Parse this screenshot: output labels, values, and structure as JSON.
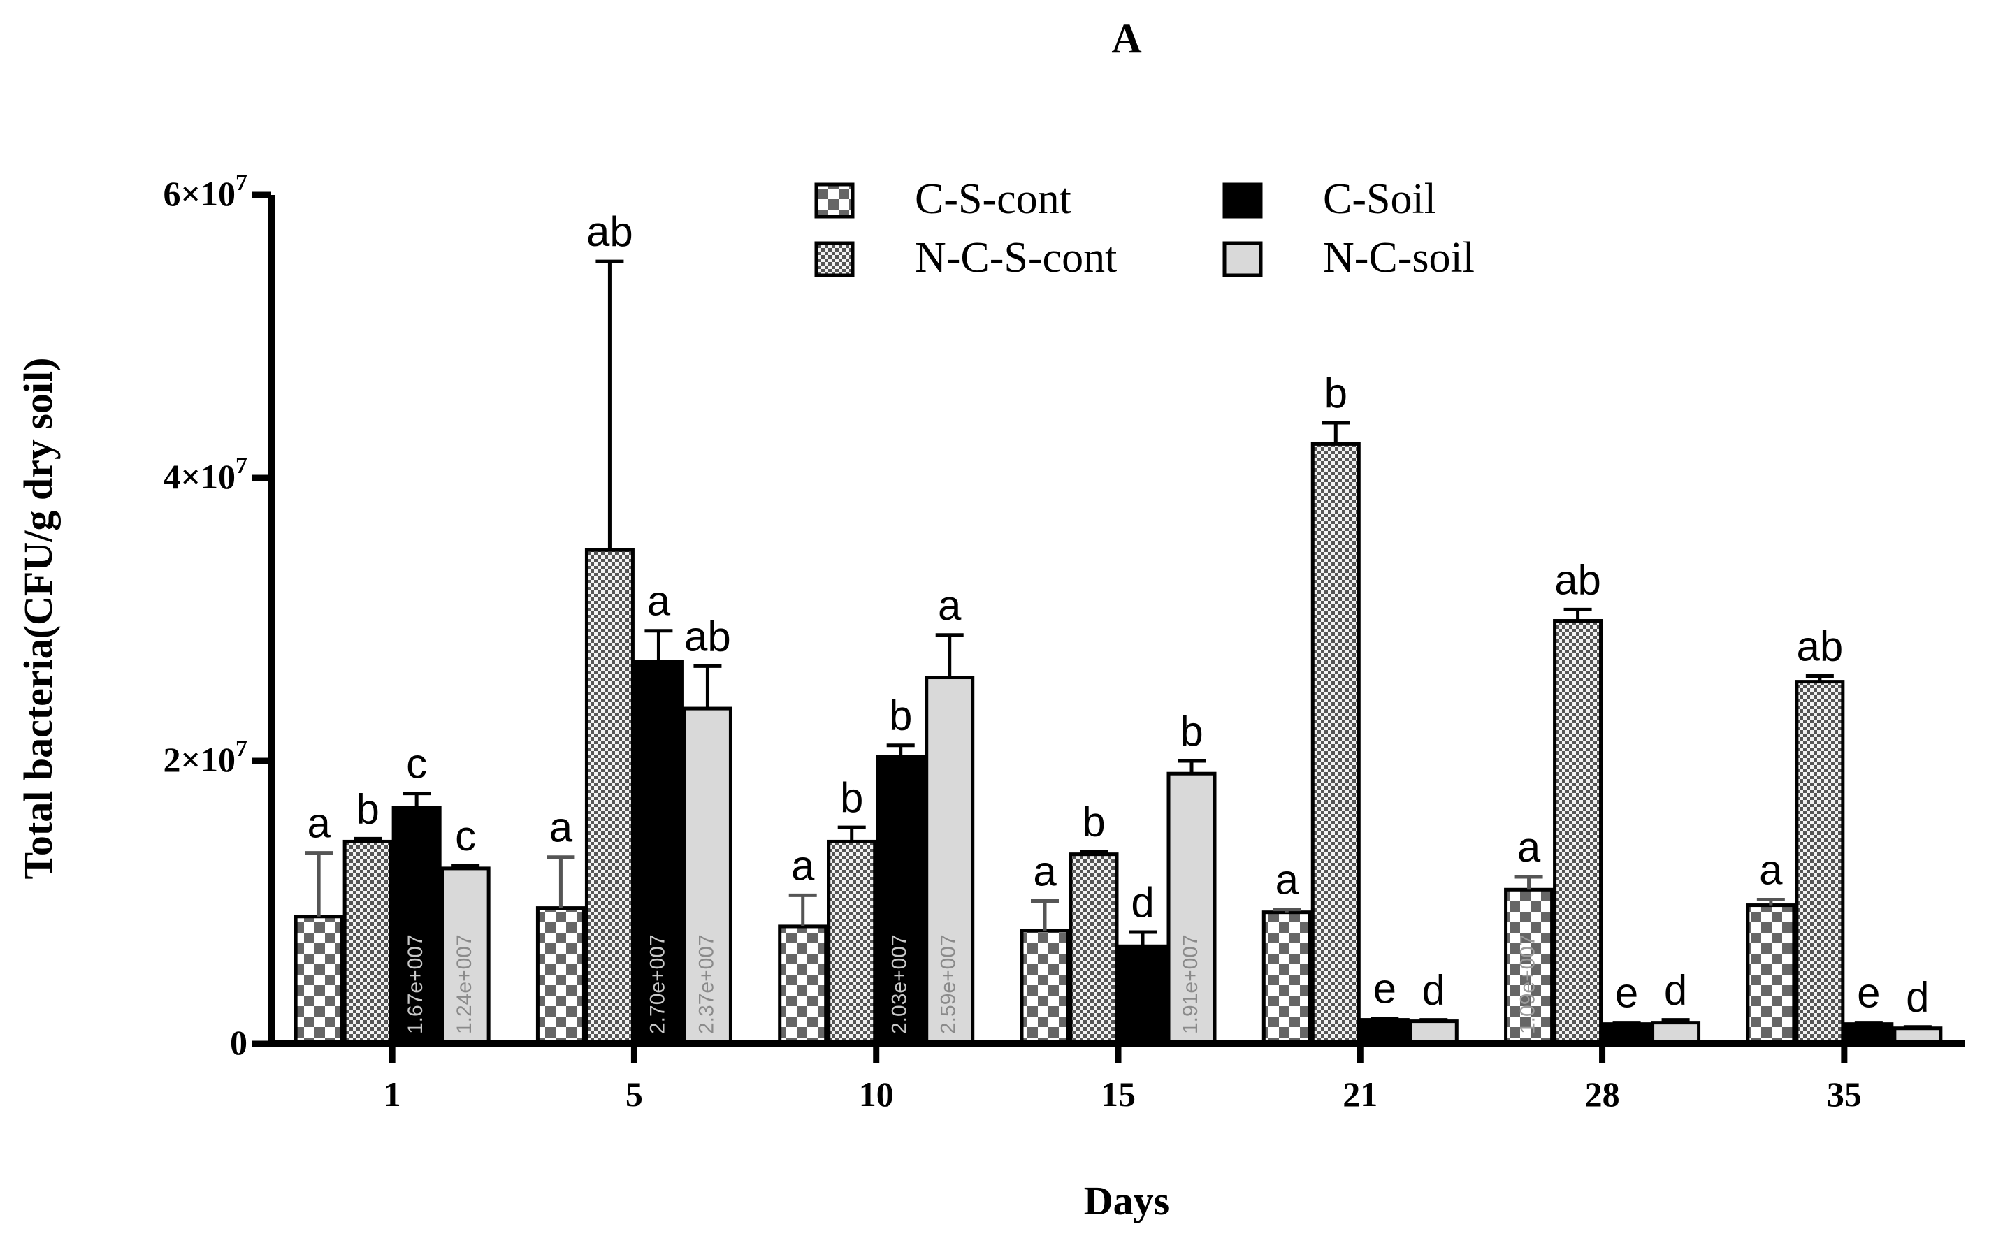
{
  "chart_data": {
    "type": "bar",
    "panel_label": "A",
    "title": "A",
    "xlabel": "Days",
    "ylabel": "Total bacteria(CFU/g dry soil)",
    "ylim": [
      0,
      60000000
    ],
    "yticks": [
      {
        "value": 0,
        "label": "0",
        "exp": ""
      },
      {
        "value": 20000000,
        "label": "2×10",
        "exp": "7"
      },
      {
        "value": 40000000,
        "label": "4×10",
        "exp": "7"
      },
      {
        "value": 60000000,
        "label": "6×10",
        "exp": "7"
      }
    ],
    "categories": [
      "1",
      "5",
      "10",
      "15",
      "21",
      "28",
      "35"
    ],
    "legend_position": "top-center",
    "series": [
      {
        "name": "C-S-cont",
        "pattern": "checker-large",
        "values": [
          9000000,
          9600000,
          8300000,
          8000000,
          9300000,
          10900000,
          9800000
        ],
        "errors": [
          4500000,
          3600000,
          2200000,
          2100000,
          200000,
          900000,
          400000
        ],
        "letters": [
          "a",
          "a",
          "a",
          "a",
          "a",
          "a",
          "a"
        ],
        "value_labels": [
          "",
          "",
          "",
          "",
          "",
          "1.09e+007",
          ""
        ]
      },
      {
        "name": "N-C-S-cont",
        "pattern": "checker-small",
        "values": [
          14300000,
          34900000,
          14300000,
          13400000,
          42400000,
          29900000,
          25600000
        ],
        "errors": [
          200000,
          20400000,
          1000000,
          200000,
          1500000,
          800000,
          400000
        ],
        "letters": [
          "b",
          "ab",
          "b",
          "b",
          "b",
          "ab",
          "ab"
        ],
        "value_labels": [
          "",
          "",
          "",
          "",
          "",
          "",
          ""
        ]
      },
      {
        "name": "C-Soil",
        "pattern": "solid-black",
        "values": [
          16700000,
          27000000,
          20300000,
          6900000,
          1700000,
          1400000,
          1400000
        ],
        "errors": [
          1000000,
          2200000,
          800000,
          1000000,
          100000,
          100000,
          100000
        ],
        "letters": [
          "c",
          "a",
          "b",
          "d",
          "e",
          "e",
          "e"
        ],
        "value_labels": [
          "1.67e+007",
          "2.70e+007",
          "2.03e+007",
          "",
          "",
          "",
          ""
        ]
      },
      {
        "name": "N-C-soil",
        "pattern": "solid-gray",
        "values": [
          12400000,
          23700000,
          25900000,
          19100000,
          1600000,
          1500000,
          1100000
        ],
        "errors": [
          200000,
          3000000,
          3000000,
          900000,
          100000,
          200000,
          100000
        ],
        "letters": [
          "c",
          "ab",
          "a",
          "b",
          "d",
          "d",
          "d"
        ],
        "value_labels": [
          "1.24e+007",
          "2.37e+007",
          "2.59e+007",
          "1.91e+007",
          "",
          "",
          ""
        ]
      }
    ]
  }
}
